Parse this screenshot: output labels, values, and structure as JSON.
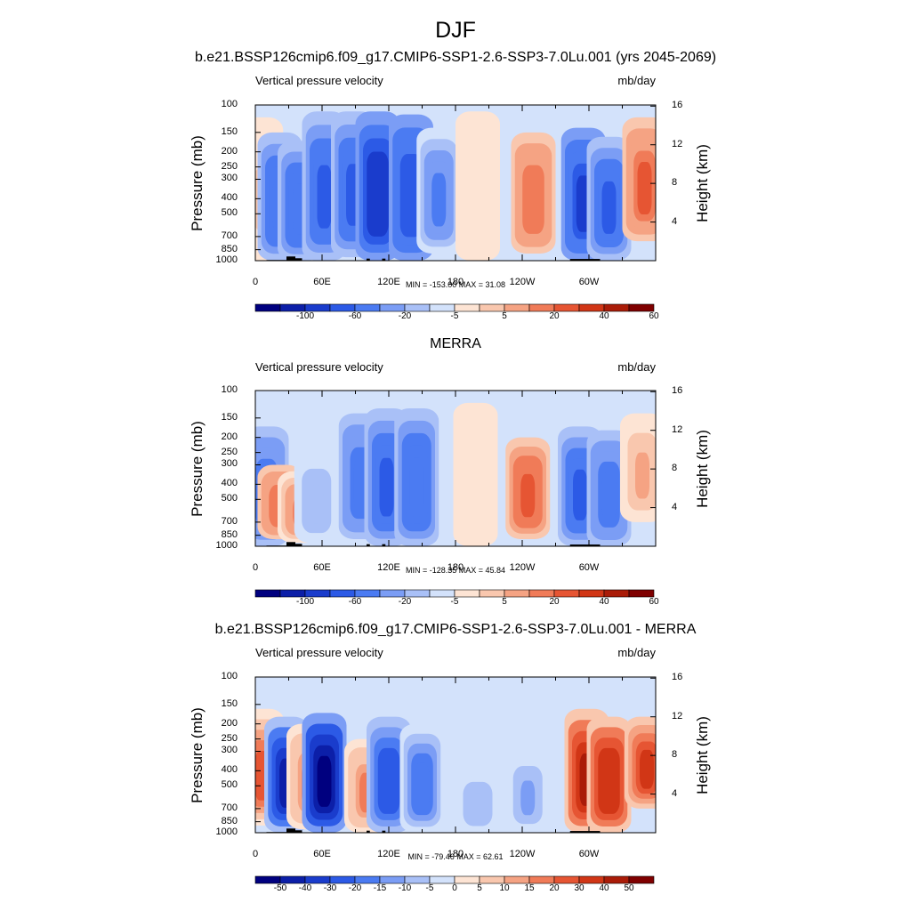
{
  "figure": {
    "title": "DJF"
  },
  "chart_data": [
    {
      "type": "heatmap",
      "title": "b.e21.BSSP126cmip6.f09_g17.CMIP6-SSP1-2.6-SSP3-7.0Lu.001 (yrs 2045-2069)",
      "left_subtitle": "Vertical pressure velocity",
      "right_subtitle": "mb/day",
      "ylabel": "Pressure (mb)",
      "ylabel_right": "Height (km)",
      "x_ticks": [
        "0",
        "60E",
        "120E",
        "180",
        "120W",
        "60W"
      ],
      "x_tick_values": [
        0,
        60,
        120,
        180,
        240,
        300
      ],
      "xlim": [
        0,
        360
      ],
      "y_ticks": [
        "100",
        "150",
        "200",
        "250",
        "300",
        "400",
        "500",
        "700",
        "850",
        "1000"
      ],
      "y_tick_values": [
        100,
        150,
        200,
        250,
        300,
        400,
        500,
        700,
        850,
        1000
      ],
      "ylim": [
        1000,
        100
      ],
      "y_scale": "log",
      "height_ticks": [
        "16",
        "12",
        "8",
        "4"
      ],
      "height_tick_values": [
        16,
        12,
        8,
        4
      ],
      "min_max": "MIN = -153.00  MAX =  31.08",
      "colorbar_labels": [
        "-100",
        "-60",
        "-20",
        "-5",
        "5",
        "20",
        "40",
        "60"
      ],
      "colorbar_levels": [
        -120,
        -100,
        -80,
        -60,
        -40,
        -20,
        -10,
        -5,
        0,
        5,
        10,
        20,
        30,
        40,
        50,
        60,
        70
      ],
      "features": [
        {
          "lon": 5,
          "p_top": 120,
          "p_bot": 1000,
          "value": 5
        },
        {
          "lon": 22,
          "p_top": 150,
          "p_bot": 1000,
          "value": -40
        },
        {
          "lon": 40,
          "p_top": 170,
          "p_bot": 1000,
          "value": -35
        },
        {
          "lon": 62,
          "p_top": 110,
          "p_bot": 1000,
          "value": -50
        },
        {
          "lon": 88,
          "p_top": 110,
          "p_bot": 950,
          "value": -45
        },
        {
          "lon": 110,
          "p_top": 110,
          "p_bot": 1000,
          "value": -80
        },
        {
          "lon": 140,
          "p_top": 115,
          "p_bot": 1000,
          "value": -55
        },
        {
          "lon": 165,
          "p_top": 140,
          "p_bot": 900,
          "value": -25
        },
        {
          "lon": 200,
          "p_top": 110,
          "p_bot": 1000,
          "value": 3
        },
        {
          "lon": 250,
          "p_top": 150,
          "p_bot": 900,
          "value": 28
        },
        {
          "lon": 295,
          "p_top": 140,
          "p_bot": 1000,
          "value": -65
        },
        {
          "lon": 318,
          "p_top": 160,
          "p_bot": 1000,
          "value": -45
        },
        {
          "lon": 350,
          "p_top": 120,
          "p_bot": 750,
          "value": 31
        }
      ]
    },
    {
      "type": "heatmap",
      "title": "MERRA",
      "left_subtitle": "Vertical pressure velocity",
      "right_subtitle": "mb/day",
      "ylabel": "Pressure (mb)",
      "ylabel_right": "Height (km)",
      "x_ticks": [
        "0",
        "60E",
        "120E",
        "180",
        "120W",
        "60W"
      ],
      "x_tick_values": [
        0,
        60,
        120,
        180,
        240,
        300
      ],
      "xlim": [
        0,
        360
      ],
      "y_ticks": [
        "100",
        "150",
        "200",
        "250",
        "300",
        "400",
        "500",
        "700",
        "850",
        "1000"
      ],
      "y_tick_values": [
        100,
        150,
        200,
        250,
        300,
        400,
        500,
        700,
        850,
        1000
      ],
      "ylim": [
        1000,
        100
      ],
      "y_scale": "log",
      "height_ticks": [
        "16",
        "12",
        "8",
        "4"
      ],
      "height_tick_values": [
        16,
        12,
        8,
        4
      ],
      "min_max": "MIN = -128.35  MAX =  45.84",
      "colorbar_labels": [
        "-100",
        "-60",
        "-20",
        "-5",
        "5",
        "20",
        "40",
        "60"
      ],
      "colorbar_levels": [
        -120,
        -100,
        -80,
        -60,
        -40,
        -20,
        -10,
        -5,
        0,
        5,
        10,
        20,
        30,
        40,
        50,
        60,
        70
      ],
      "features": [
        {
          "lon": 10,
          "p_top": 170,
          "p_bot": 1000,
          "value": -30
        },
        {
          "lon": 22,
          "p_top": 300,
          "p_bot": 900,
          "value": 25
        },
        {
          "lon": 40,
          "p_top": 330,
          "p_bot": 950,
          "value": 22
        },
        {
          "lon": 55,
          "p_top": 250,
          "p_bot": 950,
          "value": -10
        },
        {
          "lon": 95,
          "p_top": 140,
          "p_bot": 900,
          "value": -30
        },
        {
          "lon": 118,
          "p_top": 130,
          "p_bot": 1000,
          "value": -45
        },
        {
          "lon": 145,
          "p_top": 130,
          "p_bot": 1000,
          "value": -40
        },
        {
          "lon": 198,
          "p_top": 120,
          "p_bot": 1000,
          "value": 4
        },
        {
          "lon": 245,
          "p_top": 200,
          "p_bot": 900,
          "value": 35
        },
        {
          "lon": 292,
          "p_top": 170,
          "p_bot": 1000,
          "value": -50
        },
        {
          "lon": 318,
          "p_top": 180,
          "p_bot": 1000,
          "value": -30
        },
        {
          "lon": 348,
          "p_top": 140,
          "p_bot": 700,
          "value": 10
        }
      ]
    },
    {
      "type": "heatmap",
      "title": "b.e21.BSSP126cmip6.f09_g17.CMIP6-SSP1-2.6-SSP3-7.0Lu.001 - MERRA",
      "left_subtitle": "Vertical pressure velocity",
      "right_subtitle": "mb/day",
      "ylabel": "Pressure (mb)",
      "ylabel_right": "Height (km)",
      "x_ticks": [
        "0",
        "60E",
        "120E",
        "180",
        "120W",
        "60W"
      ],
      "x_tick_values": [
        0,
        60,
        120,
        180,
        240,
        300
      ],
      "xlim": [
        0,
        360
      ],
      "y_ticks": [
        "100",
        "150",
        "200",
        "250",
        "300",
        "400",
        "500",
        "700",
        "850",
        "1000"
      ],
      "y_tick_values": [
        100,
        150,
        200,
        250,
        300,
        400,
        500,
        700,
        850,
        1000
      ],
      "ylim": [
        1000,
        100
      ],
      "y_scale": "log",
      "height_ticks": [
        "16",
        "12",
        "8",
        "4"
      ],
      "height_tick_values": [
        16,
        12,
        8,
        4
      ],
      "min_max": "MIN = -79.46  MAX =  62.61",
      "colorbar_labels": [
        "-50",
        "-40",
        "-30",
        "-20",
        "-15",
        "-10",
        "-5",
        "0",
        "5",
        "10",
        "15",
        "20",
        "30",
        "40",
        "50"
      ],
      "colorbar_levels": [
        -60,
        -50,
        -40,
        -30,
        -20,
        -15,
        -10,
        -5,
        0,
        5,
        10,
        15,
        20,
        30,
        40,
        50,
        60
      ],
      "features": [
        {
          "lon": 6,
          "p_top": 160,
          "p_bot": 900,
          "value": 20
        },
        {
          "lon": 28,
          "p_top": 180,
          "p_bot": 1000,
          "value": -45
        },
        {
          "lon": 48,
          "p_top": 200,
          "p_bot": 950,
          "value": 15
        },
        {
          "lon": 62,
          "p_top": 170,
          "p_bot": 1000,
          "value": -60
        },
        {
          "lon": 100,
          "p_top": 250,
          "p_bot": 1000,
          "value": 15
        },
        {
          "lon": 120,
          "p_top": 180,
          "p_bot": 1000,
          "value": -30
        },
        {
          "lon": 150,
          "p_top": 200,
          "p_bot": 1000,
          "value": -20
        },
        {
          "lon": 200,
          "p_top": 400,
          "p_bot": 1000,
          "value": -10
        },
        {
          "lon": 245,
          "p_top": 300,
          "p_bot": 1000,
          "value": -12
        },
        {
          "lon": 298,
          "p_top": 160,
          "p_bot": 1000,
          "value": 45
        },
        {
          "lon": 318,
          "p_top": 180,
          "p_bot": 1000,
          "value": 38
        },
        {
          "lon": 352,
          "p_top": 180,
          "p_bot": 700,
          "value": 30
        }
      ]
    }
  ],
  "palette": [
    "#00007f",
    "#0c1fa8",
    "#1a3ccc",
    "#2c5ae6",
    "#4b7bf2",
    "#7b9df5",
    "#a9c0f7",
    "#d3e2fb",
    "#fde4d4",
    "#f9c7ae",
    "#f5a383",
    "#f07b58",
    "#e65533",
    "#d13616",
    "#aa1c08",
    "#7f0000"
  ]
}
